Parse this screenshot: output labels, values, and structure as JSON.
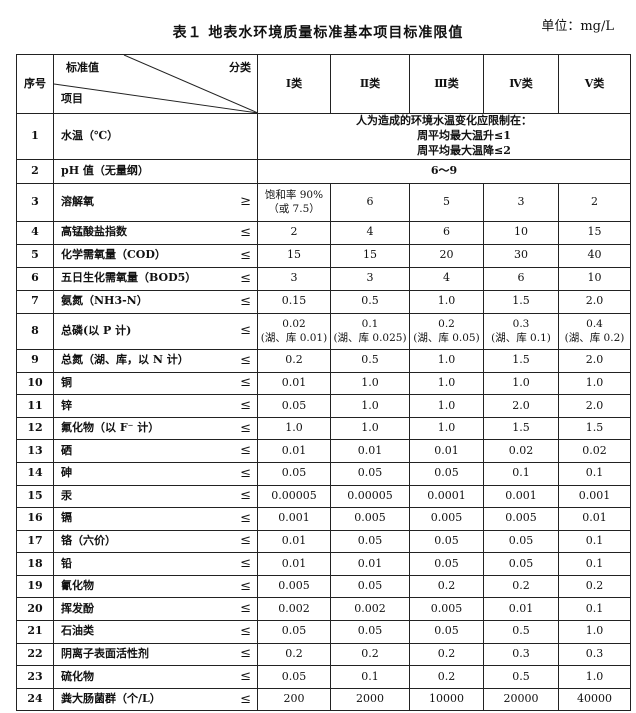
{
  "title": "表１ 地表水环境质量标准基本项目标准限值",
  "unit": "单位：mg/L",
  "header": {
    "no": "序号",
    "standard_value": "标准值",
    "category": "分类",
    "item": "项目",
    "classes": [
      "Ⅰ类",
      "Ⅱ类",
      "Ⅲ类",
      "Ⅳ类",
      "Ⅴ类"
    ]
  },
  "rows": [
    {
      "no": "1",
      "item": "水温（℃）",
      "op": "",
      "span": [
        "人为造成的环境水温变化应限制在：",
        "周平均最大温升≤1",
        "周平均最大温降≤2"
      ]
    },
    {
      "no": "2",
      "item": "pH 值（无量纲）",
      "op": "",
      "span": [
        "6～9"
      ]
    },
    {
      "no": "3",
      "item": "溶解氧",
      "op": "≥",
      "values": [
        "饱和率 90%\n（或 7.5）",
        "6",
        "5",
        "3",
        "2"
      ]
    },
    {
      "no": "4",
      "item": "高锰酸盐指数",
      "op": "≤",
      "values": [
        "2",
        "4",
        "6",
        "10",
        "15"
      ]
    },
    {
      "no": "5",
      "item": "化学需氧量（COD）",
      "op": "≤",
      "values": [
        "15",
        "15",
        "20",
        "30",
        "40"
      ]
    },
    {
      "no": "6",
      "item": "五日生化需氧量（BOD5）",
      "op": "≤",
      "values": [
        "3",
        "3",
        "4",
        "6",
        "10"
      ]
    },
    {
      "no": "7",
      "item": "氨氮（NH3-N）",
      "op": "≤",
      "values": [
        "0.15",
        "0.5",
        "1.0",
        "1.5",
        "2.0"
      ]
    },
    {
      "no": "8",
      "item": "总磷(以 P 计)",
      "op": "≤",
      "values": [
        "0.02\n(湖、库 0.01)",
        "0.1\n(湖、库 0.025)",
        "0.2\n(湖、库 0.05)",
        "0.3\n(湖、库 0.1)",
        "0.4\n(湖、库 0.2)"
      ]
    },
    {
      "no": "9",
      "item": "总氮（湖、库，以 N 计）",
      "op": "≤",
      "values": [
        "0.2",
        "0.5",
        "1.0",
        "1.5",
        "2.0"
      ]
    },
    {
      "no": "10",
      "item": "铜",
      "op": "≤",
      "values": [
        "0.01",
        "1.0",
        "1.0",
        "1.0",
        "1.0"
      ]
    },
    {
      "no": "11",
      "item": "锌",
      "op": "≤",
      "values": [
        "0.05",
        "1.0",
        "1.0",
        "2.0",
        "2.0"
      ]
    },
    {
      "no": "12",
      "item": "氟化物（以 F⁻ 计）",
      "op": "≤",
      "values": [
        "1.0",
        "1.0",
        "1.0",
        "1.5",
        "1.5"
      ]
    },
    {
      "no": "13",
      "item": "硒",
      "op": "≤",
      "values": [
        "0.01",
        "0.01",
        "0.01",
        "0.02",
        "0.02"
      ]
    },
    {
      "no": "14",
      "item": "砷",
      "op": "≤",
      "values": [
        "0.05",
        "0.05",
        "0.05",
        "0.1",
        "0.1"
      ]
    },
    {
      "no": "15",
      "item": "汞",
      "op": "≤",
      "values": [
        "0.00005",
        "0.00005",
        "0.0001",
        "0.001",
        "0.001"
      ]
    },
    {
      "no": "16",
      "item": "镉",
      "op": "≤",
      "values": [
        "0.001",
        "0.005",
        "0.005",
        "0.005",
        "0.01"
      ]
    },
    {
      "no": "17",
      "item": "铬（六价）",
      "op": "≤",
      "values": [
        "0.01",
        "0.05",
        "0.05",
        "0.05",
        "0.1"
      ]
    },
    {
      "no": "18",
      "item": "铅",
      "op": "≤",
      "values": [
        "0.01",
        "0.01",
        "0.05",
        "0.05",
        "0.1"
      ]
    },
    {
      "no": "19",
      "item": "氰化物",
      "op": "≤",
      "values": [
        "0.005",
        "0.05",
        "0.2",
        "0.2",
        "0.2"
      ]
    },
    {
      "no": "20",
      "item": "挥发酚",
      "op": "≤",
      "values": [
        "0.002",
        "0.002",
        "0.005",
        "0.01",
        "0.1"
      ]
    },
    {
      "no": "21",
      "item": "石油类",
      "op": "≤",
      "values": [
        "0.05",
        "0.05",
        "0.05",
        "0.5",
        "1.0"
      ]
    },
    {
      "no": "22",
      "item": "阴离子表面活性剂",
      "op": "≤",
      "values": [
        "0.2",
        "0.2",
        "0.2",
        "0.3",
        "0.3"
      ]
    },
    {
      "no": "23",
      "item": "硫化物",
      "op": "≤",
      "values": [
        "0.05",
        "0.1",
        "0.2",
        "0.5",
        "1.0"
      ]
    },
    {
      "no": "24",
      "item": "粪大肠菌群（个/L）",
      "op": "≤",
      "values": [
        "200",
        "2000",
        "10000",
        "20000",
        "40000"
      ]
    }
  ]
}
